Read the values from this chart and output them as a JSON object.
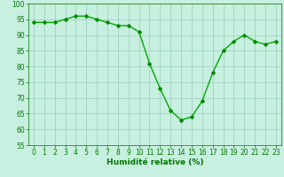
{
  "x": [
    0,
    1,
    2,
    3,
    4,
    5,
    6,
    7,
    8,
    9,
    10,
    11,
    12,
    13,
    14,
    15,
    16,
    17,
    18,
    19,
    20,
    21,
    22,
    23
  ],
  "y": [
    94,
    94,
    94,
    95,
    96,
    96,
    95,
    94,
    93,
    93,
    91,
    81,
    73,
    66,
    63,
    64,
    69,
    78,
    85,
    88,
    90,
    88,
    87,
    88
  ],
  "line_color": "#00aa00",
  "marker_color": "#008800",
  "bg_color": "#c8f0e0",
  "grid_color": "#99ccbb",
  "xlabel": "Humidité relative (%)",
  "xlabel_color": "#007700",
  "tick_color": "#007700",
  "ylim": [
    55,
    100
  ],
  "xlim": [
    -0.5,
    23.5
  ],
  "yticks": [
    55,
    60,
    65,
    70,
    75,
    80,
    85,
    90,
    95,
    100
  ],
  "xticks": [
    0,
    1,
    2,
    3,
    4,
    5,
    6,
    7,
    8,
    9,
    10,
    11,
    12,
    13,
    14,
    15,
    16,
    17,
    18,
    19,
    20,
    21,
    22,
    23
  ],
  "xlabel_fontsize": 6.5,
  "tick_fontsize": 5.5,
  "linewidth": 1.0,
  "markersize": 2.5
}
